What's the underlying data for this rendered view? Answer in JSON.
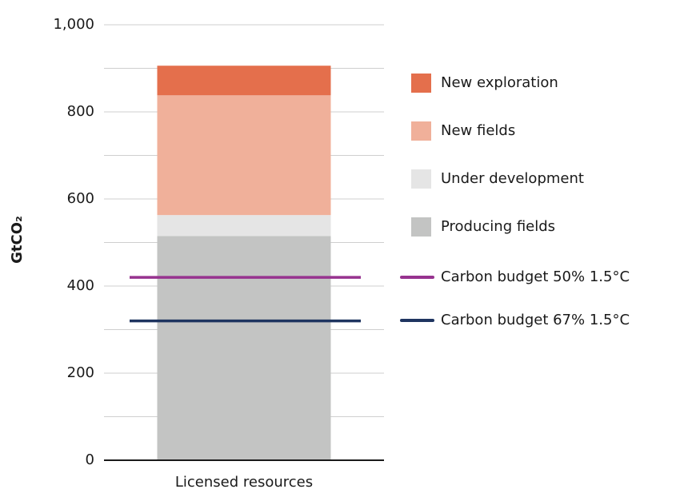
{
  "chart_data": {
    "type": "stacked_bar",
    "y_label": "GtCO₂",
    "categories": [
      "Licensed resources"
    ],
    "series": [
      {
        "name": "Producing fields",
        "color": "#c3c4c3",
        "values": [
          515
        ]
      },
      {
        "name": "Under development",
        "color": "#e5e5e5",
        "values": [
          48
        ]
      },
      {
        "name": "New fields",
        "color": "#f0b09a",
        "values": [
          275
        ]
      },
      {
        "name": "New exploration",
        "color": "#e46f4c",
        "values": [
          68
        ]
      }
    ],
    "reference_lines": [
      {
        "name": "Carbon budget 50% 1.5°C",
        "color": "#97338f",
        "value": 420
      },
      {
        "name": "Carbon budget 67% 1.5°C",
        "color": "#1f3560",
        "value": 320
      }
    ],
    "ylim": [
      0,
      1000
    ],
    "yticks": [
      0,
      200,
      400,
      600,
      800,
      {
        "value": 1000,
        "label": "1,000"
      }
    ],
    "minor_yticks": [
      100,
      300,
      500,
      700,
      900
    ],
    "grid": true
  }
}
